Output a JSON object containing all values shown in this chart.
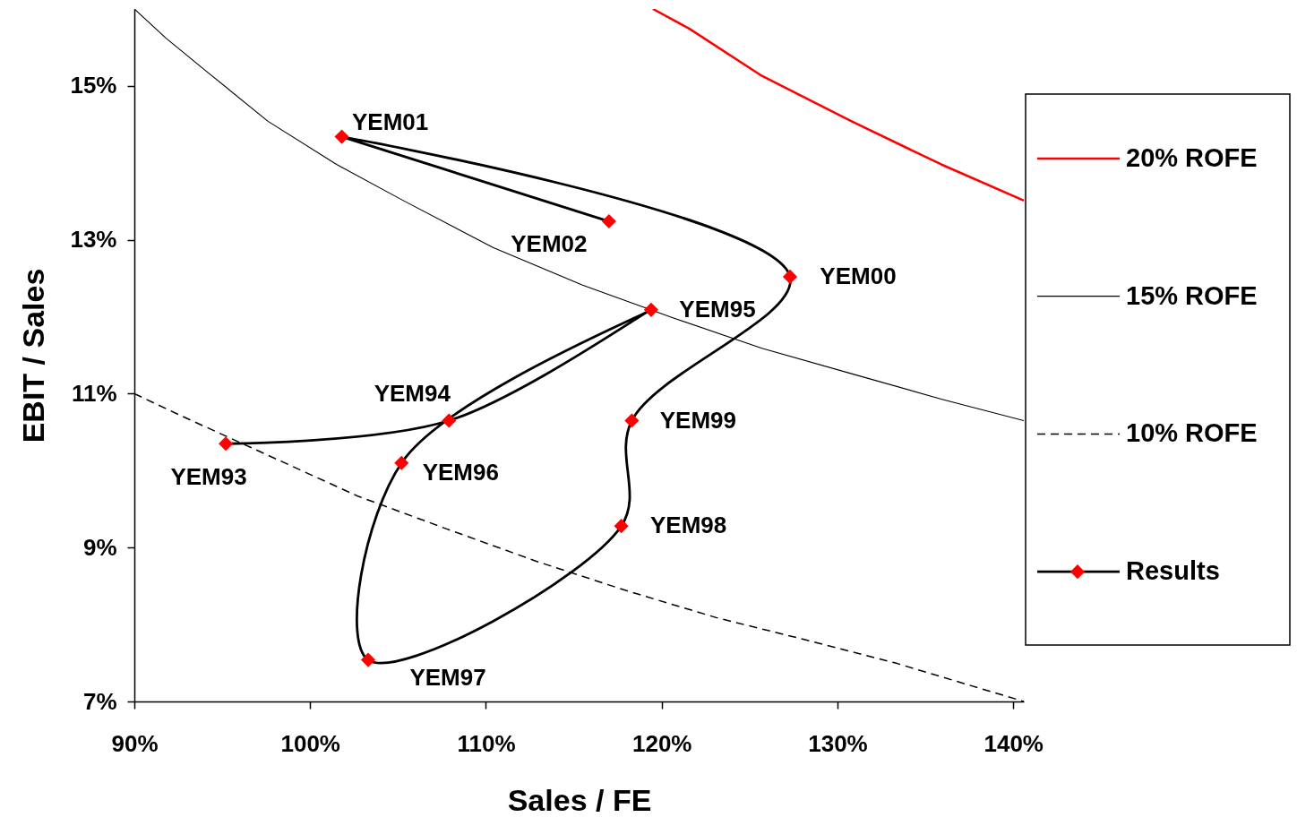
{
  "chart_data": {
    "type": "line",
    "xlabel": "Sales / FE",
    "ylabel": "EBIT / Sales",
    "xlim": [
      90,
      140.6
    ],
    "ylim": [
      7,
      16
    ],
    "xticks": [
      {
        "value": 90,
        "label": "90%"
      },
      {
        "value": 100,
        "label": "100%"
      },
      {
        "value": 110,
        "label": "110%"
      },
      {
        "value": 120,
        "label": "120%"
      },
      {
        "value": 130,
        "label": "130%"
      },
      {
        "value": 140,
        "label": "140%"
      }
    ],
    "yticks": [
      {
        "value": 7,
        "label": "7%"
      },
      {
        "value": 9,
        "label": "9%"
      },
      {
        "value": 11,
        "label": "11%"
      },
      {
        "value": 13,
        "label": "13%"
      },
      {
        "value": 15,
        "label": "15%"
      }
    ],
    "grid": false,
    "legend": "right",
    "series": [
      {
        "name": "20% ROFE",
        "color": "#ff0000",
        "line_style": "solid",
        "marker": "none",
        "x": [
          119.5,
          121.6,
          125.7,
          130.8,
          135.9,
          140.6
        ],
        "values": [
          16.0,
          15.74,
          15.13,
          14.54,
          13.98,
          13.51
        ]
      },
      {
        "name": "15% ROFE",
        "color": "#000000",
        "line_style": "solid",
        "marker": "none",
        "x": [
          90,
          91.8,
          94.1,
          97.6,
          101.5,
          105.3,
          110.4,
          115.5,
          120.6,
          125.7,
          130.8,
          135.9,
          140.6
        ],
        "values": [
          16.0,
          15.62,
          15.19,
          14.54,
          13.98,
          13.51,
          12.9,
          12.41,
          11.99,
          11.59,
          11.26,
          10.93,
          10.65
        ]
      },
      {
        "name": "10% ROFE",
        "color": "#000000",
        "line_style": "dashed",
        "marker": "none",
        "x": [
          90,
          92.5,
          97.6,
          102.7,
          107.8,
          112.9,
          118.0,
          123.1,
          128.2,
          133.3,
          140.6
        ],
        "values": [
          11.0,
          10.73,
          10.2,
          9.67,
          9.24,
          8.82,
          8.44,
          8.09,
          7.8,
          7.5,
          7.0
        ]
      },
      {
        "name": "Results",
        "color": "#000000",
        "colors": [
          "#ff0000",
          "#ff0000",
          "#ff0000",
          "#ff0000",
          "#ff0000",
          "#ff0000",
          "#ff0000",
          "#ff0000",
          "#ff0000",
          "#ff0000"
        ],
        "line_style": "solid",
        "marker": "diamond",
        "x": [
          95.2,
          107.9,
          119.4,
          105.2,
          103.3,
          117.7,
          118.3,
          127.3,
          101.8,
          117.0
        ],
        "values": [
          10.35,
          10.65,
          12.09,
          10.1,
          7.54,
          9.28,
          10.65,
          12.52,
          14.34,
          13.24
        ],
        "value_labels": [
          "YEM93",
          "YEM94",
          "YEM95",
          "YEM96",
          "YEM97",
          "YEM98",
          "YEM99",
          "YEM00",
          "YEM01",
          "YEM02"
        ]
      }
    ]
  }
}
